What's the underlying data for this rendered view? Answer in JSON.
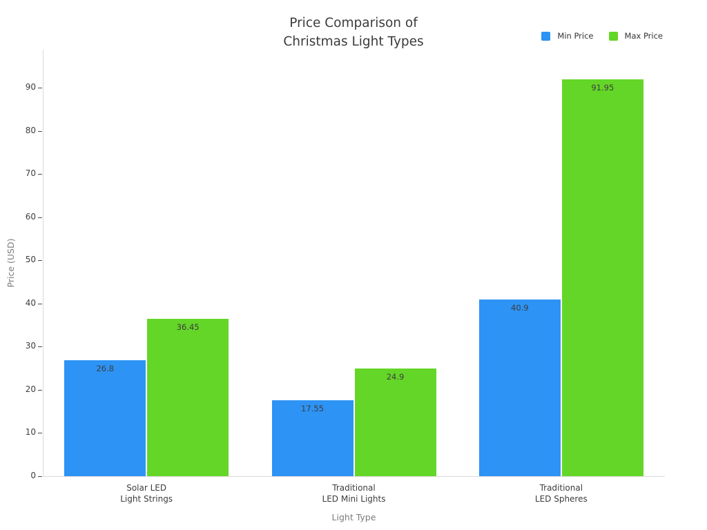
{
  "chart_data": {
    "type": "bar",
    "title": "Price Comparison of\nChristmas Light Types",
    "xlabel": "Light Type",
    "ylabel": "Price (USD)",
    "categories": [
      "Solar LED\nLight Strings",
      "Traditional\nLED Mini Lights",
      "Traditional\nLED Spheres"
    ],
    "series": [
      {
        "name": "Min Price",
        "color": "#2D93F4",
        "values": [
          26.8,
          17.55,
          40.9
        ]
      },
      {
        "name": "Max Price",
        "color": "#64D628",
        "values": [
          36.45,
          24.9,
          91.95
        ]
      }
    ],
    "ylim": [
      0,
      98.8
    ],
    "ytick_step": 10,
    "ytick_max": 90,
    "grid": false,
    "legend_position": "top-right",
    "bar_value_labels": true,
    "colors": {
      "axis_line": "#d9d9d9",
      "tick_text": "#3c3c3c",
      "title_text": "#3b3b3b",
      "axis_title_text": "#7b7b7b",
      "bar_label_text": "#3d3d3d"
    }
  }
}
